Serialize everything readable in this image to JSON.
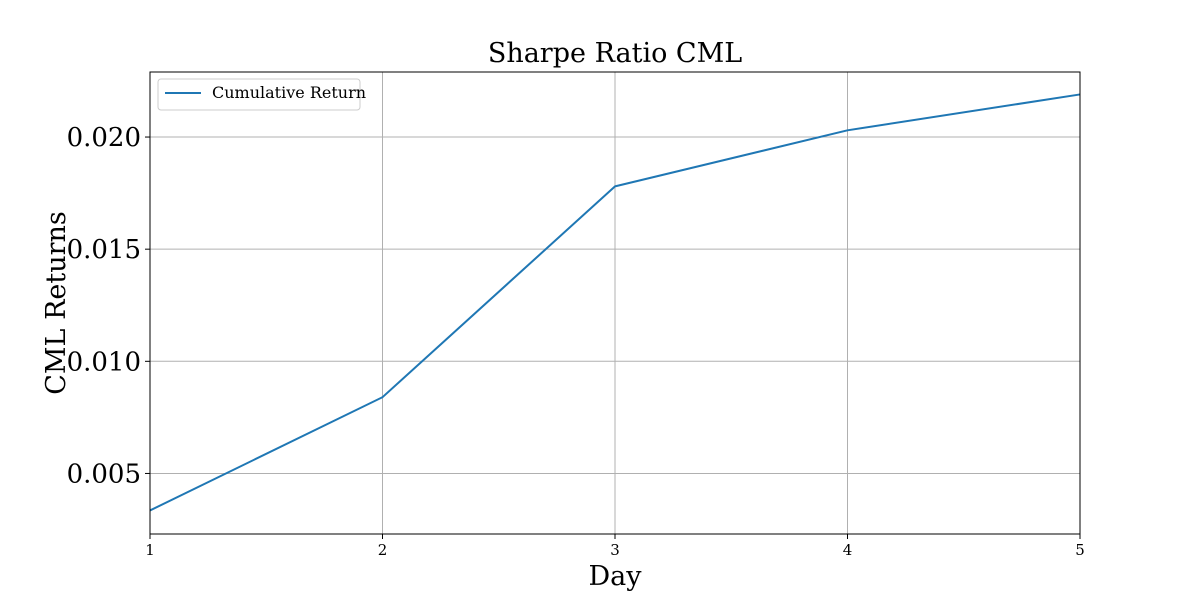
{
  "chart_data": {
    "type": "line",
    "title": "Sharpe Ratio CML",
    "xlabel": "Day",
    "ylabel": "CML Returns",
    "x": [
      1,
      2,
      3,
      4,
      5
    ],
    "series": [
      {
        "name": "Cumulative Return",
        "values": [
          0.00335,
          0.0084,
          0.0178,
          0.0203,
          0.0219
        ],
        "color": "#1f77b4"
      }
    ],
    "xlim": [
      1,
      5
    ],
    "ylim": [
      0.0023,
      0.0229
    ],
    "xticks": [
      1,
      2,
      3,
      4,
      5
    ],
    "xtick_labels": [
      "1",
      "2",
      "3",
      "4",
      "5"
    ],
    "yticks": [
      0.005,
      0.01,
      0.015,
      0.02
    ],
    "ytick_labels": [
      "0.005",
      "0.010",
      "0.015",
      "0.020"
    ],
    "grid": true,
    "legend_position": "top-left"
  }
}
